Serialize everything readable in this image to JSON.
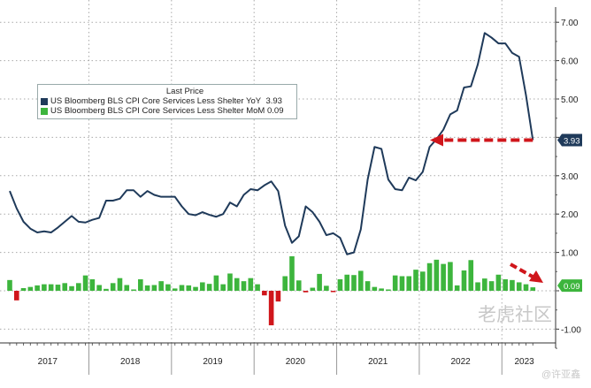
{
  "chart_data": {
    "type": "line",
    "title": "",
    "legend_title": "Last Price",
    "legend_placement": "top-left",
    "series": [
      {
        "name": "US Bloomberg BLS CPI Core Services Less Shelter YoY",
        "last": "3.93",
        "color": "#1f3a5a",
        "kind": "line",
        "values": [
          2.6,
          2.15,
          1.8,
          1.62,
          1.52,
          1.55,
          1.52,
          1.65,
          1.8,
          1.95,
          1.8,
          1.78,
          1.85,
          1.9,
          2.35,
          2.35,
          2.4,
          2.62,
          2.62,
          2.45,
          2.6,
          2.5,
          2.45,
          2.45,
          2.45,
          2.2,
          2.0,
          1.97,
          2.05,
          1.98,
          1.93,
          2.0,
          2.3,
          2.2,
          2.5,
          2.65,
          2.62,
          2.75,
          2.85,
          2.6,
          1.7,
          1.25,
          1.42,
          2.2,
          2.05,
          1.8,
          1.45,
          1.5,
          1.38,
          0.95,
          1.0,
          1.6,
          2.9,
          3.75,
          3.7,
          2.9,
          2.65,
          2.62,
          2.95,
          2.88,
          3.1,
          3.75,
          3.95,
          4.2,
          4.6,
          4.7,
          5.3,
          5.33,
          5.9,
          6.72,
          6.6,
          6.45,
          6.45,
          6.2,
          6.1,
          5.1,
          3.93
        ]
      },
      {
        "name": "US Bloomberg BLS CPI Core Services Less Shelter MoM",
        "last": "0.09",
        "color": "#3db53d",
        "negative_color": "#d0161b",
        "kind": "bar",
        "values": [
          0.28,
          -0.25,
          0.07,
          0.1,
          0.14,
          0.17,
          0.17,
          0.16,
          0.2,
          0.12,
          0.2,
          0.4,
          0.3,
          0.15,
          0.05,
          0.2,
          0.33,
          0.15,
          0.03,
          0.3,
          0.14,
          0.15,
          0.25,
          0.17,
          0.06,
          0.15,
          0.14,
          0.1,
          0.22,
          0.18,
          0.4,
          0.17,
          0.45,
          0.33,
          0.25,
          0.33,
          0.17,
          -0.12,
          -0.9,
          -0.28,
          0.38,
          0.9,
          0.27,
          -0.04,
          0.08,
          0.44,
          0.13,
          -0.03,
          0.3,
          0.42,
          0.41,
          0.52,
          0.25,
          0.1,
          0.06,
          0.02,
          0.4,
          0.38,
          0.38,
          0.55,
          0.5,
          0.72,
          0.81,
          0.7,
          0.75,
          0.14,
          0.53,
          0.8,
          0.22,
          0.32,
          0.25,
          0.42,
          0.3,
          0.28,
          0.22,
          0.17,
          0.09
        ]
      }
    ],
    "x_start": "2017-01",
    "x_end": "2023-05",
    "frequency": "monthly",
    "x_tick_labels": [
      "2017",
      "2018",
      "2019",
      "2020",
      "2021",
      "2022",
      "2023"
    ],
    "y_ticks": [
      "7.00",
      "6.00",
      "5.00",
      "3.00",
      "2.00",
      "1.00",
      "-1.00"
    ],
    "ylim": [
      -1.35,
      7.35
    ],
    "y_axis_side": "right",
    "grid": true,
    "annotations": [
      "dashed red arrow from latest YoY value pointing left at 3.93 level",
      "dashed red arrow pointing down toward latest MoM bar"
    ],
    "annotation_color": "#d0161b"
  },
  "watermark": {
    "site": "老虎社区",
    "author": "@许亚鑫"
  }
}
